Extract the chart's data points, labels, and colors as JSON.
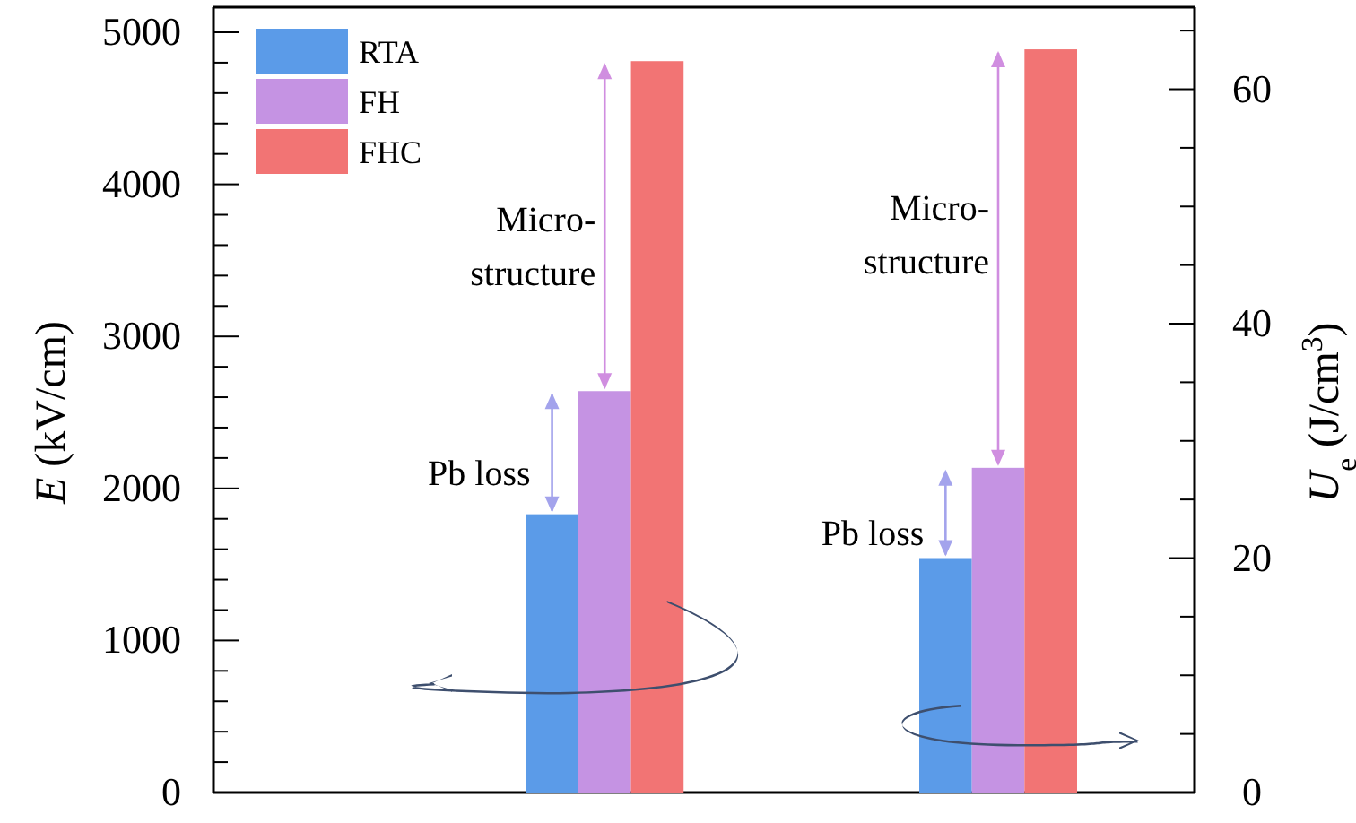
{
  "chart_data": [
    {
      "type": "bar",
      "categories": [
        null
      ],
      "ylabel": "E (kV/cm)",
      "ylim": [
        0,
        5000
      ],
      "yticks": [
        0,
        {
          "value": 200,
          "label": null
        },
        {
          "value": 400,
          "label": null
        },
        {
          "value": 600,
          "label": null
        },
        {
          "value": 800,
          "label": null
        },
        1000,
        {
          "value": 1200,
          "label": null
        },
        {
          "value": 1400,
          "label": null
        },
        {
          "value": 1600,
          "label": null
        },
        {
          "value": 1800,
          "label": null
        },
        2000,
        {
          "value": 2200,
          "label": null
        },
        {
          "value": 2400,
          "label": null
        },
        {
          "value": 2600,
          "label": null
        },
        {
          "value": 2800,
          "label": null
        },
        3000,
        {
          "value": 3200,
          "label": null
        },
        {
          "value": 3400,
          "label": null
        },
        {
          "value": 3600,
          "label": null
        },
        {
          "value": 3800,
          "label": null
        },
        4000,
        {
          "value": 4200,
          "label": null
        },
        {
          "value": 4400,
          "label": null
        },
        {
          "value": 4600,
          "label": null
        },
        {
          "value": 4800,
          "label": null
        },
        5000
      ],
      "series": [
        {
          "name": "RTA",
          "color": "#5b9be8",
          "values": [
            1830
          ]
        },
        {
          "name": "FH",
          "color": "#c593e3",
          "values": [
            2640
          ]
        },
        {
          "name": "FHC",
          "color": "#f27474",
          "values": [
            4810
          ]
        }
      ],
      "annotations": [
        "Micro-\nstructure",
        "Pb loss"
      ],
      "legend": "top left"
    },
    {
      "type": "bar",
      "categories": [
        null
      ],
      "ylabel": "U$_{e}$ (J/cm$^{3}$)",
      "ylim": [
        0,
        67
      ],
      "yticks": [
        0,
        {
          "value": 5,
          "label": null
        },
        {
          "value": 10,
          "label": null
        },
        {
          "value": 15,
          "label": null
        },
        20,
        {
          "value": 25,
          "label": null
        },
        {
          "value": 30,
          "label": null
        },
        {
          "value": 35,
          "label": null
        },
        40,
        {
          "value": 45,
          "label": null
        },
        {
          "value": 50,
          "label": null
        },
        {
          "value": 55,
          "label": null
        },
        60,
        {
          "value": 65,
          "label": null
        }
      ],
      "series": [
        {
          "color": "#5b9be8",
          "values": [
            20
          ]
        },
        {
          "color": "#c593e3",
          "values": [
            27.7
          ]
        },
        {
          "color": "#f27474",
          "values": [
            63.4
          ]
        }
      ],
      "annotations": [
        "Micro-\nstructure",
        "Pb loss"
      ]
    }
  ]
}
